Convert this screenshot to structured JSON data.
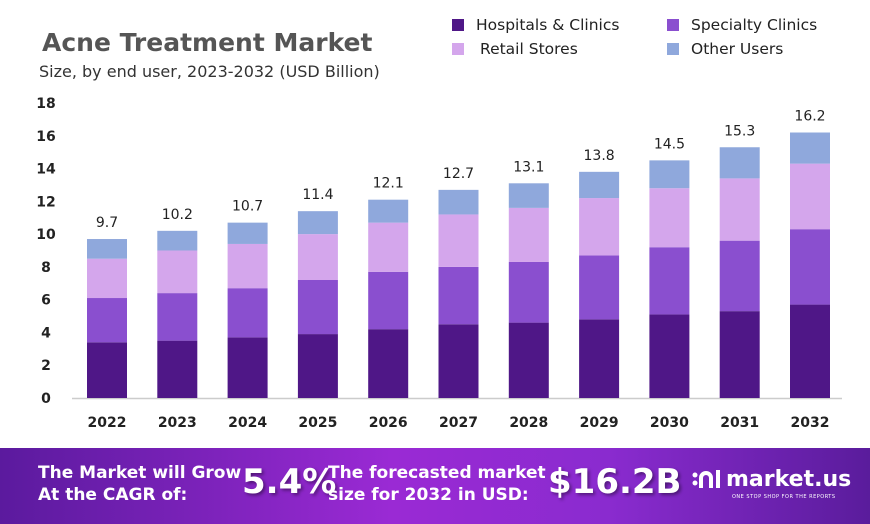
{
  "chart_data": {
    "type": "bar",
    "stacked": true,
    "title": "Acne Treatment Market",
    "subtitle": "Size, by end user, 2023-2032 (USD Billion)",
    "categories": [
      "2022",
      "2023",
      "2024",
      "2025",
      "2026",
      "2027",
      "2028",
      "2029",
      "2030",
      "2031",
      "2032"
    ],
    "series": [
      {
        "name": "Hospitals & Clinics",
        "color": "#4f1787",
        "values": [
          3.4,
          3.5,
          3.7,
          3.9,
          4.2,
          4.5,
          4.6,
          4.8,
          5.1,
          5.3,
          5.7
        ]
      },
      {
        "name": "Specialty Clinics",
        "color": "#8a4fcf",
        "values": [
          2.7,
          2.9,
          3.0,
          3.3,
          3.5,
          3.5,
          3.7,
          3.9,
          4.1,
          4.3,
          4.6
        ]
      },
      {
        "name": "Retail Stores",
        "color": "#d4a6ec",
        "values": [
          2.4,
          2.6,
          2.7,
          2.8,
          3.0,
          3.2,
          3.3,
          3.5,
          3.6,
          3.8,
          4.0
        ]
      },
      {
        "name": "Other Users",
        "color": "#8fa8dc",
        "values": [
          1.2,
          1.2,
          1.3,
          1.4,
          1.4,
          1.5,
          1.5,
          1.6,
          1.7,
          1.9,
          1.9
        ]
      }
    ],
    "totals": [
      "9.7",
      "10.2",
      "10.7",
      "11.4",
      "12.1",
      "12.7",
      "13.1",
      "13.8",
      "14.5",
      "15.3",
      "16.2"
    ],
    "yticks": [
      0,
      2,
      4,
      6,
      8,
      10,
      12,
      14,
      16,
      18
    ],
    "ylim": [
      0,
      18
    ],
    "xlabel": "",
    "ylabel": "",
    "grid": false,
    "legend_position": "top-right"
  },
  "footer": {
    "cagr_label_1": "The Market will Grow",
    "cagr_label_2": "At the CAGR of:",
    "cagr_value": "5.4%",
    "forecast_label_1": "The forecasted market",
    "forecast_label_2": "size for 2032 in USD:",
    "forecast_value": "$16.2B",
    "brand": "market.us",
    "brand_tagline": "ONE STOP SHOP FOR THE REPORTS"
  }
}
